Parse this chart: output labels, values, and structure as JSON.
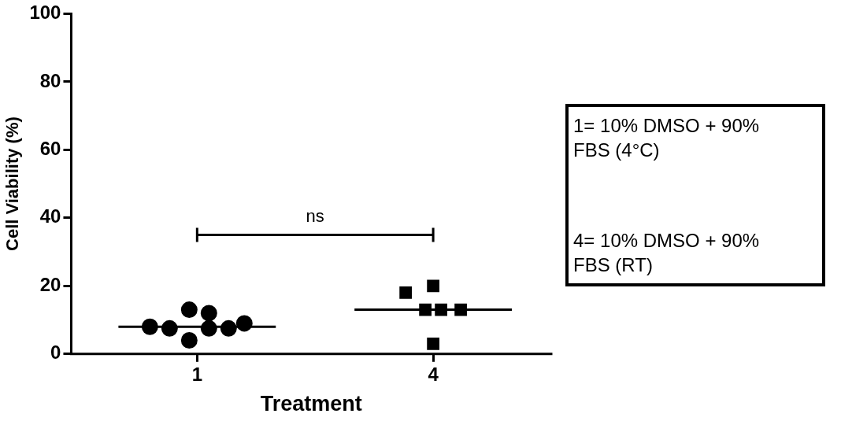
{
  "chart_data": {
    "type": "scatter",
    "xlabel": "Treatment",
    "ylabel": "Cell Viability (%)",
    "series": [
      {
        "marker": "circle",
        "color": "#000000",
        "x": [
          0.4,
          0.65,
          0.9,
          0.9,
          1.15,
          1.15,
          1.4,
          1.6
        ],
        "values": [
          8,
          7.5,
          13,
          4,
          12,
          7.5,
          7.5,
          9
        ]
      },
      {
        "marker": "square",
        "color": "#000000",
        "x": [
          3.65,
          3.9,
          4,
          4,
          4.1,
          4.35
        ],
        "values": [
          18,
          13,
          20,
          3,
          13,
          13
        ]
      },
      {
        "type": "line",
        "marker": "none",
        "color": "#000000",
        "x": [
          0,
          2
        ],
        "values": [
          8,
          8
        ]
      },
      {
        "type": "line",
        "marker": "none",
        "color": "#000000",
        "x": [
          3,
          5
        ],
        "values": [
          13,
          13
        ]
      }
    ],
    "xlim": [
      -0.6,
      5.5
    ],
    "xticks": [
      1,
      4
    ],
    "ylim": [
      0,
      100
    ],
    "yticks": [
      0,
      20,
      40,
      60,
      80,
      100
    ],
    "grid": false,
    "legend": false,
    "annotations": [
      "ns",
      "1= 10% DMSO + 90% FBS (4°C)",
      "4= 10% DMSO + 90% FBS (RT)"
    ]
  }
}
